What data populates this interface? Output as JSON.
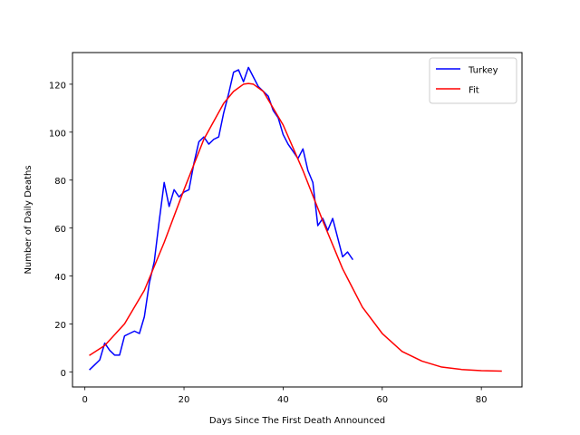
{
  "chart_data": {
    "type": "line",
    "title": "",
    "xlabel": "Days Since The First Death Announced",
    "ylabel": "Number of Daily Deaths",
    "xlim": [
      -2.5,
      88.2
    ],
    "ylim": [
      -6.3,
      133.2
    ],
    "xticks": [
      0,
      20,
      40,
      60,
      80
    ],
    "yticks": [
      0,
      20,
      40,
      60,
      80,
      100,
      120
    ],
    "grid": false,
    "legend_position": "top-right",
    "series": [
      {
        "name": "Turkey",
        "color": "#0000ff",
        "x": [
          1,
          2,
          3,
          4,
          5,
          6,
          7,
          8,
          9,
          10,
          11,
          12,
          13,
          14,
          15,
          16,
          17,
          18,
          19,
          20,
          21,
          22,
          23,
          24,
          25,
          26,
          27,
          28,
          29,
          30,
          31,
          32,
          33,
          34,
          35,
          36,
          37,
          38,
          39,
          40,
          41,
          42,
          43,
          44,
          45,
          46,
          47,
          48,
          49,
          50,
          51,
          52,
          53,
          54
        ],
        "y": [
          1,
          3,
          5,
          12,
          9,
          7,
          7,
          15,
          16,
          17,
          16,
          23,
          37,
          46,
          63,
          79,
          69,
          76,
          73,
          75,
          76,
          87,
          96,
          98,
          95,
          97,
          98,
          108,
          116,
          125,
          126,
          121,
          127,
          123,
          119,
          117,
          115,
          109,
          106,
          99,
          95,
          92,
          89,
          93,
          84,
          79,
          61,
          64,
          59,
          64,
          56,
          48,
          50,
          47
        ]
      },
      {
        "name": "Fit",
        "color": "#ff0000",
        "x": [
          1,
          4,
          8,
          12,
          16,
          20,
          24,
          28,
          30,
          32,
          33,
          34,
          36,
          40,
          44,
          48,
          52,
          56,
          60,
          64,
          68,
          72,
          76,
          80,
          84
        ],
        "y": [
          7,
          11,
          20,
          34,
          54,
          76,
          97,
          112,
          117,
          120,
          120.3,
          120,
          117,
          103,
          84,
          63,
          43,
          27,
          16,
          8.5,
          4.5,
          2,
          1,
          0.5,
          0.3
        ]
      }
    ]
  }
}
